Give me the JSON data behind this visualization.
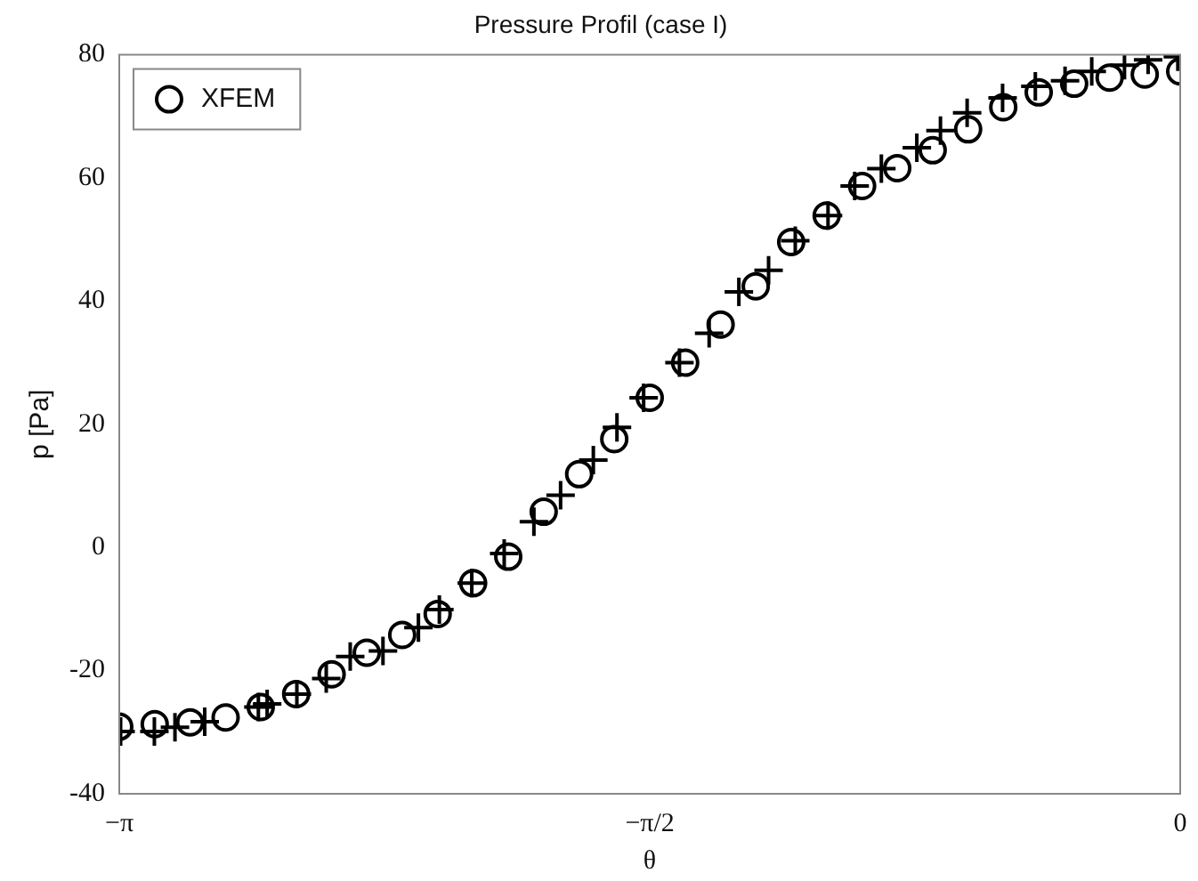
{
  "chart_data": {
    "type": "scatter",
    "title": "Pressure Profil (case I)",
    "xlabel": "θ",
    "ylabel": "p [Pa]",
    "xlim": [
      -3.142,
      0
    ],
    "xticks": [
      {
        "value": -3.142,
        "label": "−π"
      },
      {
        "value": -1.5708,
        "label": "−π/2"
      },
      0
    ],
    "ylim": [
      -40,
      80
    ],
    "yticks": [
      -40,
      -20,
      0,
      20,
      40,
      60,
      80
    ],
    "grid": false,
    "legend": "top left",
    "series": [
      {
        "color": "#000000",
        "marker": "cross",
        "x": [
          -3.138,
          -3.038,
          -2.977,
          -2.889,
          -2.73,
          -2.704,
          -2.616,
          -2.529,
          -2.458,
          -2.361,
          -2.256,
          -2.194,
          -2.098,
          -2.002,
          -1.914,
          -1.835,
          -1.738,
          -1.668,
          -1.589,
          -1.483,
          -1.395,
          -1.307,
          -1.219,
          -1.14,
          -1.043,
          -0.964,
          -0.885,
          -0.78,
          -0.71,
          -0.631,
          -0.526,
          -0.429,
          -0.341,
          -0.262,
          -0.165,
          -0.095,
          -0.007
        ],
        "values": [
          -29.9,
          -29.9,
          -29.2,
          -28.3,
          -25.9,
          -25.4,
          -23.8,
          -21.3,
          -17.7,
          -16.8,
          -13,
          -10.1,
          -5.8,
          -1,
          4.2,
          8.5,
          14.2,
          19.5,
          24.3,
          30,
          34.8,
          41.5,
          45,
          49.8,
          53.9,
          58.7,
          61.5,
          64.9,
          67.7,
          70.6,
          73,
          74.9,
          75.8,
          77.3,
          78.3,
          79.2,
          79.7
        ]
      },
      {
        "name": "XFEM",
        "color": "#000000",
        "marker": "circle",
        "x": [
          -3.142,
          -3.037,
          -2.932,
          -2.827,
          -2.723,
          -2.618,
          -2.513,
          -2.409,
          -2.304,
          -2.199,
          -2.094,
          -1.99,
          -1.885,
          -1.78,
          -1.676,
          -1.571,
          -1.466,
          -1.361,
          -1.257,
          -1.152,
          -1.047,
          -0.942,
          -0.838,
          -0.733,
          -0.628,
          -0.524,
          -0.419,
          -0.314,
          -0.209,
          -0.105,
          0
        ],
        "values": [
          -29.1,
          -28.7,
          -28.4,
          -27.6,
          -25.9,
          -23.8,
          -20.6,
          -17.1,
          -14.2,
          -10.8,
          -5.8,
          -1.5,
          5.8,
          11.9,
          17.6,
          24.3,
          30,
          36.2,
          42.4,
          49.6,
          53.9,
          58.7,
          61.6,
          64.5,
          67.9,
          71.5,
          73.9,
          75.3,
          76.3,
          76.8,
          77.3
        ]
      }
    ]
  }
}
